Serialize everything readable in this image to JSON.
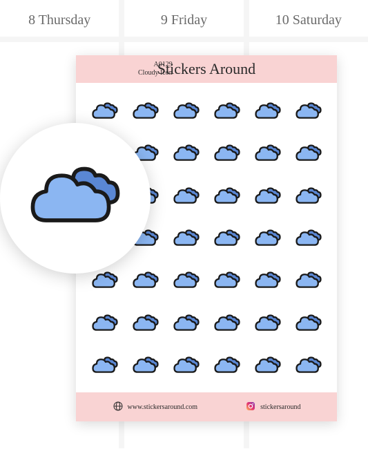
{
  "planner": {
    "days": [
      {
        "label": "8 Thursday"
      },
      {
        "label": "9 Friday"
      },
      {
        "label": "10 Saturday"
      }
    ]
  },
  "sheet": {
    "brand": "Stickers Around",
    "sku": "A0129",
    "product_name": "Cloudy Icon",
    "grid": {
      "rows": 7,
      "cols": 6
    },
    "colors": {
      "header_bg": "#f9d3d3",
      "cloud_front": "#8bb6f2",
      "cloud_back": "#5a87d4",
      "cloud_stroke": "#1a1a1a"
    },
    "footer": {
      "website": "www.stickersaround.com",
      "instagram": "stickersaround"
    }
  }
}
